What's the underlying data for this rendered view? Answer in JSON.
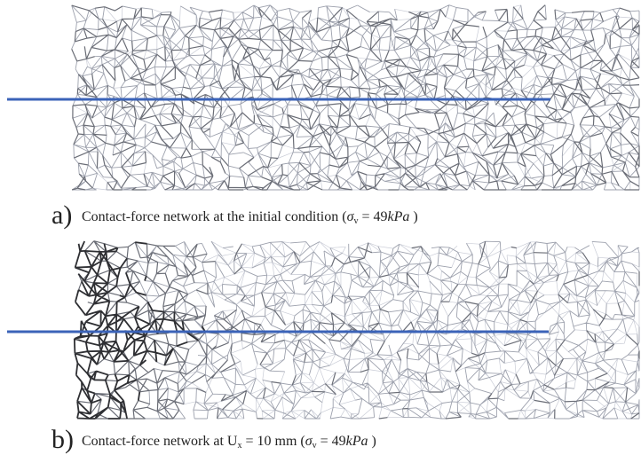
{
  "panels": [
    {
      "label": "a)",
      "caption": [
        "Contact-force network at the initial condition (",
        "σ",
        "v",
        " = 49",
        "kPa",
        " )"
      ]
    },
    {
      "label": "b)",
      "caption": [
        "Contact-force network at U",
        "x",
        " = 10 mm (",
        "σ",
        "v",
        " = 49",
        "kPa",
        " )"
      ]
    }
  ]
}
